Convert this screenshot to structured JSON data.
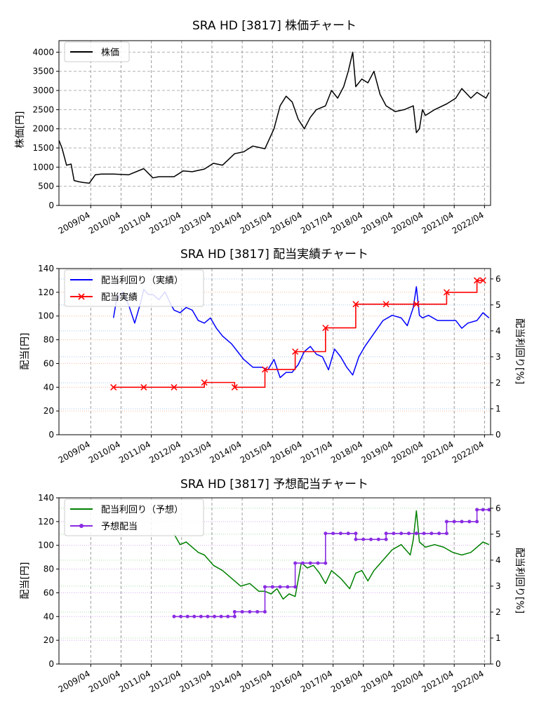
{
  "x_tick_labels": [
    "2009/04",
    "2010/04",
    "2011/04",
    "2012/04",
    "2013/04",
    "2014/04",
    "2015/04",
    "2016/04",
    "2017/04",
    "2018/04",
    "2019/04",
    "2020/04",
    "2021/04",
    "2022/04"
  ],
  "chart_data": [
    {
      "type": "line",
      "title": "SRA HD [3817]  株価チャート",
      "xlabel": "",
      "ylabel": "株価[円]",
      "ylim": [
        0,
        4300
      ],
      "yticks": [
        0,
        500,
        1000,
        1500,
        2000,
        2500,
        3000,
        3500,
        4000
      ],
      "grid": true,
      "legend": "top-left",
      "series": [
        {
          "name": "株価",
          "color": "#000000",
          "x": [
            2008.2,
            2008.3,
            2008.45,
            2008.6,
            2008.7,
            2008.85,
            2009.0,
            2009.2,
            2009.4,
            2009.6,
            2010.0,
            2010.5,
            2011.0,
            2011.3,
            2011.5,
            2012.0,
            2012.3,
            2012.6,
            2013.0,
            2013.3,
            2013.6,
            2014.0,
            2014.3,
            2014.6,
            2015.0,
            2015.3,
            2015.5,
            2015.7,
            2015.9,
            2016.1,
            2016.3,
            2016.5,
            2016.7,
            2017.0,
            2017.2,
            2017.4,
            2017.6,
            2017.75,
            2017.9,
            2018.0,
            2018.2,
            2018.4,
            2018.6,
            2018.8,
            2019.0,
            2019.3,
            2019.6,
            2019.9,
            2020.0,
            2020.1,
            2020.2,
            2020.3,
            2020.6,
            2021.0,
            2021.3,
            2021.5,
            2021.8,
            2022.0,
            2022.3,
            2022.4
          ],
          "values": [
            1700,
            1500,
            1050,
            1080,
            650,
            620,
            600,
            580,
            800,
            820,
            820,
            800,
            960,
            720,
            750,
            750,
            900,
            880,
            950,
            1100,
            1050,
            1350,
            1400,
            1550,
            1480,
            2000,
            2600,
            2850,
            2700,
            2250,
            2000,
            2300,
            2500,
            2600,
            3000,
            2800,
            3100,
            3500,
            4000,
            3100,
            3300,
            3200,
            3500,
            2900,
            2600,
            2450,
            2500,
            2600,
            1900,
            2000,
            2500,
            2350,
            2500,
            2650,
            2800,
            3050,
            2800,
            2950,
            2800,
            2950
          ]
        }
      ]
    },
    {
      "type": "line",
      "title": "SRA HD [3817]  配当実績チャート",
      "xlabel": "",
      "ylabel": "配当[円]",
      "ylabel_right": "配当利回り[%]",
      "ylim": [
        0,
        140
      ],
      "yticks": [
        0,
        20,
        40,
        60,
        80,
        100,
        120,
        140
      ],
      "ylim_right": [
        0,
        6.4
      ],
      "yticks_right": [
        0,
        1,
        2,
        3,
        4,
        5,
        6
      ],
      "grid": true,
      "legend": "top-left",
      "series": [
        {
          "name": "配当利回り（実績）",
          "axis": "right",
          "color": "#0000ff",
          "x": [
            2010.0,
            2010.1,
            2010.3,
            2010.5,
            2010.7,
            2010.9,
            2011.0,
            2011.15,
            2011.3,
            2011.5,
            2011.7,
            2011.9,
            2012.0,
            2012.2,
            2012.4,
            2012.6,
            2012.8,
            2013.0,
            2013.2,
            2013.4,
            2013.6,
            2013.9,
            2014.1,
            2014.3,
            2014.6,
            2014.9,
            2015.1,
            2015.3,
            2015.5,
            2015.7,
            2015.9,
            2016.1,
            2016.3,
            2016.5,
            2016.7,
            2016.9,
            2017.1,
            2017.3,
            2017.5,
            2017.7,
            2017.9,
            2018.1,
            2018.3,
            2018.6,
            2018.9,
            2019.2,
            2019.5,
            2019.7,
            2019.9,
            2020.0,
            2020.1,
            2020.2,
            2020.4,
            2020.7,
            2021.0,
            2021.3,
            2021.5,
            2021.7,
            2022.0,
            2022.2,
            2022.4
          ],
          "values": [
            4.5,
            5.2,
            5.5,
            5.0,
            4.3,
            5.1,
            5.6,
            5.4,
            5.4,
            5.2,
            5.5,
            5.0,
            4.8,
            4.7,
            4.9,
            4.8,
            4.4,
            4.3,
            4.5,
            4.1,
            3.8,
            3.5,
            3.2,
            2.9,
            2.6,
            2.6,
            2.5,
            2.9,
            2.2,
            2.4,
            2.4,
            2.7,
            3.2,
            3.4,
            3.1,
            3.0,
            2.5,
            3.3,
            3.0,
            2.6,
            2.3,
            3.0,
            3.4,
            3.9,
            4.4,
            4.6,
            4.5,
            4.2,
            4.9,
            5.7,
            4.6,
            4.5,
            4.6,
            4.4,
            4.4,
            4.4,
            4.1,
            4.3,
            4.4,
            4.7,
            4.5
          ]
        },
        {
          "name": "配当実績",
          "axis": "left",
          "color": "#ff0000",
          "step": true,
          "marker": "x",
          "x": [
            2010.0,
            2011.0,
            2012.0,
            2013.0,
            2014.0,
            2015.0,
            2016.0,
            2017.0,
            2018.0,
            2019.0,
            2020.0,
            2021.0,
            2022.0,
            2022.2
          ],
          "values": [
            40,
            40,
            40,
            44,
            40,
            55,
            70,
            90,
            110,
            110,
            110,
            120,
            130,
            130
          ]
        }
      ]
    },
    {
      "type": "line",
      "title": "SRA HD [3817]  予想配当チャート",
      "xlabel": "",
      "ylabel": "配当[円]",
      "ylabel_right": "配当利回り[%]",
      "ylim": [
        0,
        140
      ],
      "yticks": [
        0,
        20,
        40,
        60,
        80,
        100,
        120,
        140
      ],
      "ylim_right": [
        0,
        6.4
      ],
      "yticks_right": [
        0,
        1,
        2,
        3,
        4,
        5,
        6
      ],
      "grid": true,
      "legend": "top-left",
      "series": [
        {
          "name": "配当利回り（予想）",
          "axis": "right",
          "color": "#008000",
          "x": [
            2012.0,
            2012.2,
            2012.4,
            2012.6,
            2012.8,
            2013.0,
            2013.3,
            2013.6,
            2013.9,
            2014.2,
            2014.5,
            2014.8,
            2015.0,
            2015.2,
            2015.4,
            2015.6,
            2015.8,
            2016.0,
            2016.2,
            2016.4,
            2016.6,
            2016.8,
            2017.0,
            2017.2,
            2017.5,
            2017.8,
            2018.0,
            2018.2,
            2018.4,
            2018.6,
            2018.9,
            2019.2,
            2019.5,
            2019.8,
            2019.9,
            2020.0,
            2020.1,
            2020.3,
            2020.6,
            2020.9,
            2021.2,
            2021.5,
            2021.8,
            2022.0,
            2022.2,
            2022.4
          ],
          "values": [
            5.0,
            4.6,
            4.7,
            4.5,
            4.3,
            4.2,
            3.8,
            3.6,
            3.3,
            3.0,
            3.1,
            2.8,
            2.8,
            2.7,
            2.9,
            2.5,
            2.7,
            2.6,
            3.9,
            3.7,
            3.8,
            3.5,
            3.1,
            3.6,
            3.3,
            2.9,
            3.5,
            3.6,
            3.2,
            3.6,
            4.0,
            4.4,
            4.6,
            4.2,
            4.8,
            5.9,
            4.7,
            4.5,
            4.6,
            4.5,
            4.3,
            4.2,
            4.3,
            4.5,
            4.7,
            4.6
          ]
        },
        {
          "name": "予想配当",
          "axis": "left",
          "color": "#8a2be2",
          "step": true,
          "marker": "o",
          "x": [
            2012.0,
            2014.0,
            2015.0,
            2016.0,
            2017.0,
            2018.0,
            2019.0,
            2020.0,
            2021.0,
            2022.0,
            2022.4
          ],
          "values": [
            40,
            44,
            65,
            85,
            110,
            105,
            110,
            110,
            120,
            130,
            130
          ]
        }
      ]
    }
  ]
}
